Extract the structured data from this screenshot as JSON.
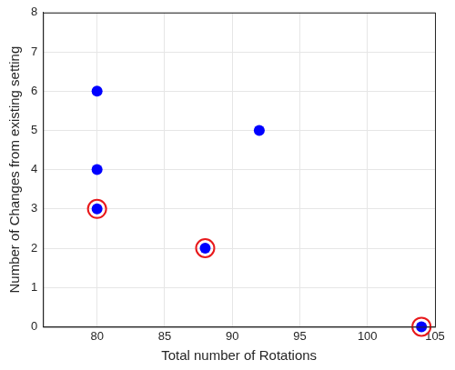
{
  "chart_data": {
    "type": "scatter",
    "x_label": "Total number of Rotations",
    "y_label": "Number of Changes from existing setting",
    "series": [
      {
        "color": "#0000ff",
        "marker": "circle",
        "x": [
          80,
          80,
          80,
          88,
          92,
          104
        ],
        "values": [
          6,
          4,
          3,
          2,
          5,
          0
        ]
      },
      {
        "color": "#e8191c",
        "marker": "ring",
        "x": [
          80,
          88,
          104
        ],
        "values": [
          3,
          2,
          0
        ]
      }
    ],
    "xlim": [
      76,
      105
    ],
    "xticks": [
      80,
      85,
      90,
      95,
      100,
      105
    ],
    "ylim": [
      0,
      8
    ],
    "yticks": [
      0,
      1,
      2,
      3,
      4,
      5,
      6,
      7,
      8
    ],
    "grid": true
  }
}
